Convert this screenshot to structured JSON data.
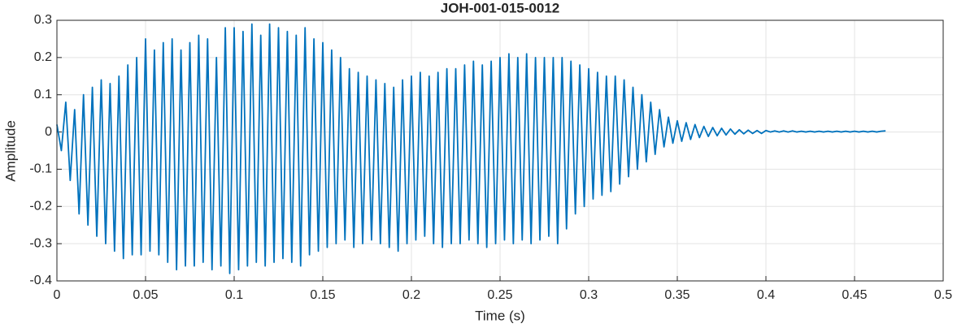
{
  "chart_data": {
    "type": "line",
    "title": "JOH-001-015-0012",
    "xlabel": "Time (s)",
    "ylabel": "Amplitude",
    "xlim": [
      0,
      0.5
    ],
    "ylim": [
      -0.4,
      0.3
    ],
    "xticks": [
      0,
      0.05,
      0.1,
      0.15,
      0.2,
      0.25,
      0.3,
      0.35,
      0.4,
      0.45,
      0.5
    ],
    "yticks": [
      -0.4,
      -0.3,
      -0.2,
      -0.1,
      0,
      0.1,
      0.2,
      0.3
    ],
    "grid": true,
    "x": [
      0,
      0.0025,
      0.005,
      0.0075,
      0.01,
      0.0125,
      0.015,
      0.0175,
      0.02,
      0.0225,
      0.025,
      0.0275,
      0.03,
      0.0325,
      0.035,
      0.0375,
      0.04,
      0.0425,
      0.045,
      0.0475,
      0.05,
      0.0525,
      0.055,
      0.0575,
      0.06,
      0.0625,
      0.065,
      0.0675,
      0.07,
      0.0725,
      0.075,
      0.0775,
      0.08,
      0.0825,
      0.085,
      0.0875,
      0.09,
      0.0925,
      0.095,
      0.0975,
      0.1,
      0.1025,
      0.105,
      0.1075,
      0.11,
      0.1125,
      0.115,
      0.1175,
      0.12,
      0.1225,
      0.125,
      0.1275,
      0.13,
      0.1325,
      0.135,
      0.1375,
      0.14,
      0.1425,
      0.145,
      0.1475,
      0.15,
      0.1525,
      0.155,
      0.1575,
      0.16,
      0.1625,
      0.165,
      0.1675,
      0.17,
      0.1725,
      0.175,
      0.1775,
      0.18,
      0.1825,
      0.185,
      0.1875,
      0.19,
      0.1925,
      0.195,
      0.1975,
      0.2,
      0.2025,
      0.205,
      0.2075,
      0.21,
      0.2125,
      0.215,
      0.2175,
      0.22,
      0.2225,
      0.225,
      0.2275,
      0.23,
      0.2325,
      0.235,
      0.2375,
      0.24,
      0.2425,
      0.245,
      0.2475,
      0.25,
      0.2525,
      0.255,
      0.2575,
      0.26,
      0.2625,
      0.265,
      0.2675,
      0.27,
      0.2725,
      0.275,
      0.2775,
      0.28,
      0.2825,
      0.285,
      0.2875,
      0.29,
      0.2925,
      0.295,
      0.2975,
      0.3,
      0.3025,
      0.305,
      0.3075,
      0.31,
      0.3125,
      0.315,
      0.3175,
      0.32,
      0.3225,
      0.325,
      0.3275,
      0.33,
      0.3325,
      0.335,
      0.3375,
      0.34,
      0.3425,
      0.345,
      0.3475,
      0.35,
      0.3525,
      0.355,
      0.3575,
      0.36,
      0.3625,
      0.365,
      0.3675,
      0.37,
      0.3725,
      0.375,
      0.3775,
      0.38,
      0.3825,
      0.385,
      0.3875,
      0.39,
      0.3925,
      0.395,
      0.3975,
      0.4,
      0.4025,
      0.405,
      0.4075,
      0.41,
      0.4125,
      0.415,
      0.4175,
      0.42,
      0.4225,
      0.425,
      0.4275,
      0.43,
      0.4325,
      0.435,
      0.4375,
      0.44,
      0.4425,
      0.445,
      0.4475,
      0.45,
      0.4525,
      0.455,
      0.4575,
      0.46,
      0.4625,
      0.465,
      0.4675
    ],
    "series": [
      {
        "color": "#0072BD",
        "values": [
          0.02,
          -0.05,
          0.08,
          -0.13,
          0.06,
          -0.22,
          0.1,
          -0.25,
          0.12,
          -0.28,
          0.14,
          -0.3,
          0.13,
          -0.32,
          0.15,
          -0.34,
          0.18,
          -0.33,
          0.2,
          -0.33,
          0.25,
          -0.32,
          0.22,
          -0.33,
          0.24,
          -0.35,
          0.25,
          -0.37,
          0.22,
          -0.36,
          0.24,
          -0.36,
          0.26,
          -0.35,
          0.25,
          -0.37,
          0.2,
          -0.36,
          0.28,
          -0.38,
          0.28,
          -0.37,
          0.27,
          -0.36,
          0.29,
          -0.35,
          0.26,
          -0.36,
          0.29,
          -0.35,
          0.28,
          -0.34,
          0.27,
          -0.35,
          0.26,
          -0.36,
          0.28,
          -0.33,
          0.25,
          -0.32,
          0.24,
          -0.31,
          0.22,
          -0.3,
          0.2,
          -0.29,
          0.17,
          -0.31,
          0.16,
          -0.3,
          0.15,
          -0.29,
          0.14,
          -0.3,
          0.13,
          -0.31,
          0.12,
          -0.32,
          0.14,
          -0.3,
          0.15,
          -0.29,
          0.16,
          -0.28,
          0.15,
          -0.3,
          0.16,
          -0.31,
          0.17,
          -0.3,
          0.17,
          -0.3,
          0.18,
          -0.29,
          0.19,
          -0.3,
          0.18,
          -0.31,
          0.19,
          -0.3,
          0.2,
          -0.29,
          0.21,
          -0.3,
          0.2,
          -0.29,
          0.21,
          -0.3,
          0.2,
          -0.29,
          0.2,
          -0.28,
          0.2,
          -0.3,
          0.2,
          -0.26,
          0.19,
          -0.22,
          0.18,
          -0.2,
          0.17,
          -0.18,
          0.16,
          -0.17,
          0.15,
          -0.16,
          0.15,
          -0.14,
          0.14,
          -0.12,
          0.12,
          -0.1,
          0.1,
          -0.08,
          0.08,
          -0.06,
          0.06,
          -0.04,
          0.04,
          -0.03,
          0.03,
          -0.025,
          0.025,
          -0.02,
          0.02,
          -0.015,
          0.015,
          -0.012,
          0.012,
          -0.01,
          0.01,
          -0.008,
          0.008,
          -0.006,
          0.006,
          -0.005,
          0.005,
          -0.004,
          0.004,
          -0.004,
          0.004,
          0,
          0.003,
          0,
          0.003,
          0,
          0.003,
          0,
          0.002,
          0,
          0.002,
          0,
          0.002,
          0,
          0.002,
          0,
          0.002,
          0,
          0.002,
          0,
          0.002,
          0,
          0.002,
          0,
          0.002,
          0,
          0.002,
          0.003
        ]
      }
    ]
  }
}
